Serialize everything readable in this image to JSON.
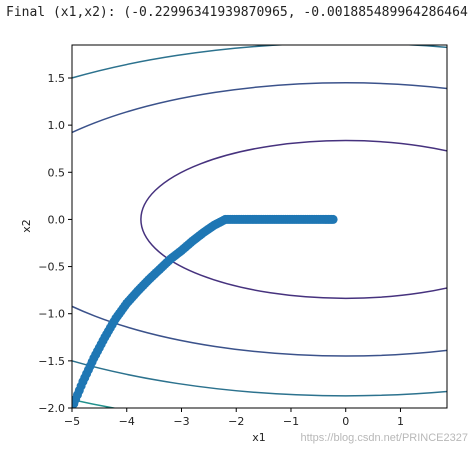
{
  "header": {
    "final_text": "Final (x1,x2): (-0.22996341939870965, -0.001885489964286464"
  },
  "watermark": "https://blog.csdn.net/PRINCE2327",
  "chart_data": {
    "type": "contour",
    "xlabel": "x1",
    "ylabel": "x2",
    "xlim": [
      -5,
      1.85
    ],
    "ylim": [
      -2,
      1.85
    ],
    "xticks": [
      -5,
      -4,
      -3,
      -2,
      -1,
      0,
      1
    ],
    "yticks": [
      -2.0,
      -1.5,
      -1.0,
      -0.5,
      0.0,
      0.5,
      1.0,
      1.5
    ],
    "xtick_labels": [
      "−5",
      "−4",
      "−3",
      "−2",
      "−1",
      "0",
      "1"
    ],
    "ytick_labels": [
      "−2.0",
      "−1.5",
      "−1.0",
      "−0.5",
      "0.0",
      "0.5",
      "1.0",
      "1.5"
    ],
    "function": "f(x1,x2) = 0.1*x1^2 + 2*x2^2",
    "contour_levels": [
      1.4,
      4.2,
      7.0,
      9.8,
      12.6
    ],
    "contour_colors": [
      "#46327e",
      "#3b528b",
      "#2c728e",
      "#21918c",
      "#5ec962",
      "#a8d941"
    ],
    "trajectory_color": "#1f77b4",
    "trajectory_start": [
      -5,
      -2
    ],
    "trajectory_end": [
      -0.22996341939870965,
      -0.001885489964286464
    ],
    "trajectory_points": [
      [
        -5.0,
        -2.0
      ],
      [
        -4.8,
        -1.72
      ],
      [
        -4.6,
        -1.47
      ],
      [
        -4.4,
        -1.25
      ],
      [
        -4.2,
        -1.05
      ],
      [
        -4.0,
        -0.89
      ],
      [
        -3.8,
        -0.76
      ],
      [
        -3.6,
        -0.64
      ],
      [
        -3.4,
        -0.53
      ],
      [
        -3.2,
        -0.42
      ],
      [
        -3.0,
        -0.33
      ],
      [
        -2.8,
        -0.23
      ],
      [
        -2.6,
        -0.14
      ],
      [
        -2.4,
        -0.06
      ],
      [
        -2.2,
        0.0
      ],
      [
        -2.0,
        0.0
      ],
      [
        -1.8,
        0.0
      ],
      [
        -1.6,
        0.0
      ],
      [
        -1.4,
        0.0
      ],
      [
        -1.2,
        0.0
      ],
      [
        -1.0,
        0.0
      ],
      [
        -0.8,
        0.0
      ],
      [
        -0.6,
        0.0
      ],
      [
        -0.4,
        0.0
      ],
      [
        -0.23,
        0.0
      ]
    ]
  }
}
